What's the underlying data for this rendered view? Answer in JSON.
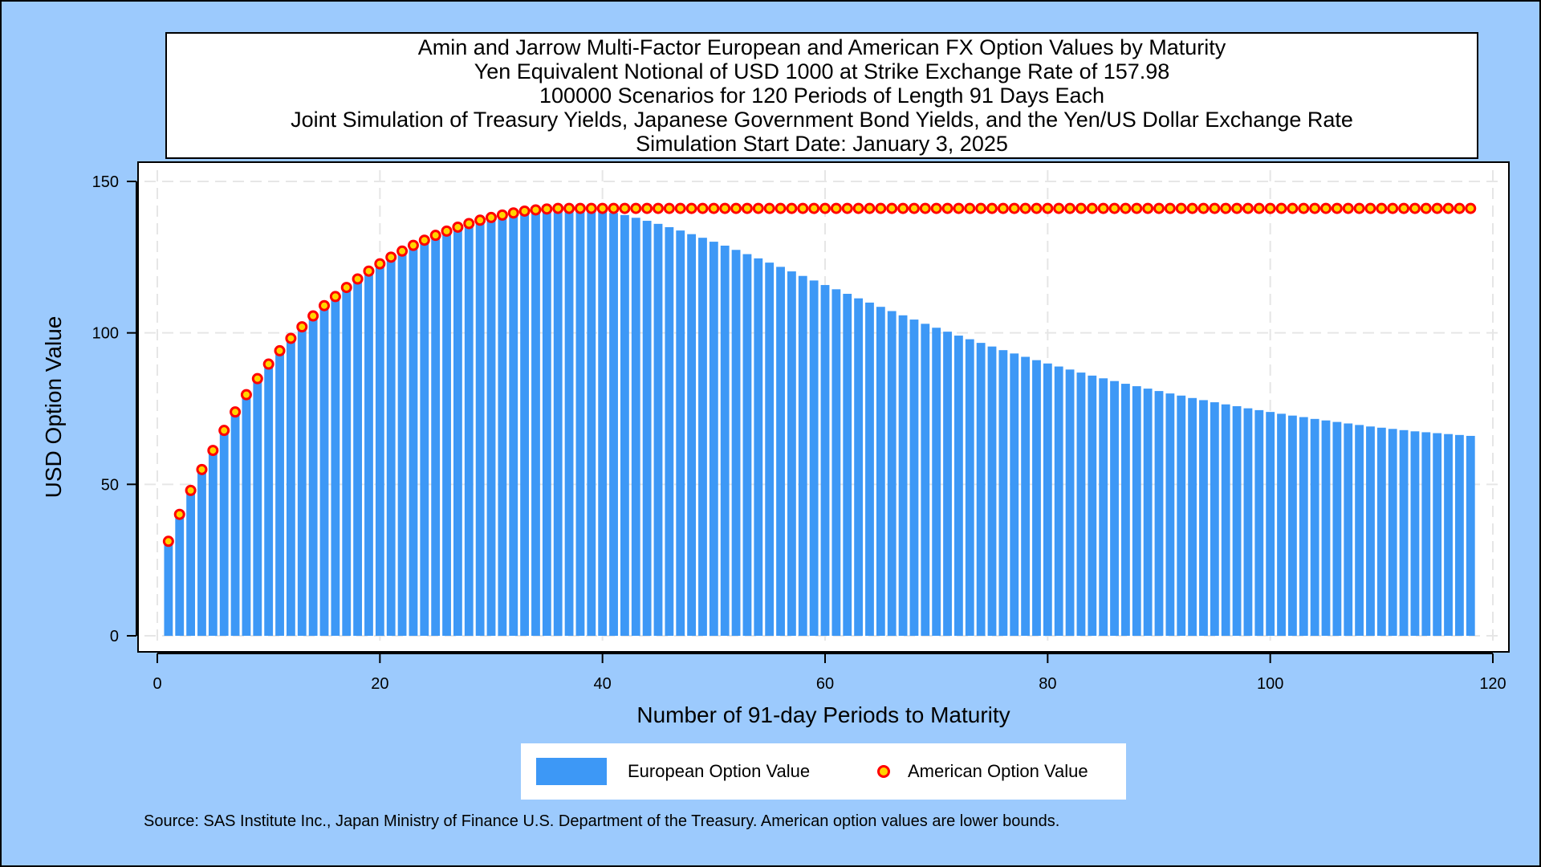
{
  "chart_data": {
    "type": "bar",
    "title": [
      "Amin and Jarrow Multi-Factor European and American FX Option Values by Maturity",
      "Yen Equivalent Notional of USD 1000 at Strike Exchange Rate of 157.98",
      "100000 Scenarios for 120 Periods of Length 91 Days Each",
      "Joint Simulation of Treasury Yields, Japanese Government Bond Yields, and the Yen/US Dollar Exchange Rate",
      "Simulation Start Date: January 3, 2025"
    ],
    "xlabel": "Number of 91-day Periods to Maturity",
    "ylabel": "USD Option Value",
    "xlim": [
      0,
      120
    ],
    "ylim": [
      0,
      150
    ],
    "xticks": [
      "0",
      "20",
      "40",
      "60",
      "80",
      "100",
      "120"
    ],
    "yticks": [
      "0",
      "50",
      "100",
      "150"
    ],
    "grid": true,
    "legend_position": "bottom",
    "x": [
      1,
      2,
      3,
      4,
      5,
      6,
      7,
      8,
      9,
      10,
      11,
      12,
      13,
      14,
      15,
      16,
      17,
      18,
      19,
      20,
      21,
      22,
      23,
      24,
      25,
      26,
      27,
      28,
      29,
      30,
      31,
      32,
      33,
      34,
      35,
      36,
      37,
      38,
      39,
      40,
      41,
      42,
      43,
      44,
      45,
      46,
      47,
      48,
      49,
      50,
      51,
      52,
      53,
      54,
      55,
      56,
      57,
      58,
      59,
      60,
      61,
      62,
      63,
      64,
      65,
      66,
      67,
      68,
      69,
      70,
      71,
      72,
      73,
      74,
      75,
      76,
      77,
      78,
      79,
      80,
      81,
      82,
      83,
      84,
      85,
      86,
      87,
      88,
      89,
      90,
      91,
      92,
      93,
      94,
      95,
      96,
      97,
      98,
      99,
      100,
      101,
      102,
      103,
      104,
      105,
      106,
      107,
      108,
      109,
      110,
      111,
      112,
      113,
      114,
      115,
      116,
      117,
      118
    ],
    "series": [
      {
        "name": "European Option Value",
        "color": "#3d98f6",
        "marker": "bar",
        "values": [
          31.2,
          40.1,
          48,
          54.9,
          61.2,
          67.8,
          73.9,
          79.6,
          84.9,
          89.7,
          94.1,
          98.2,
          102,
          105.6,
          109,
          112,
          115,
          117.8,
          120.4,
          122.8,
          125,
          127,
          128.9,
          130.6,
          132.2,
          133.6,
          134.9,
          136.1,
          137.2,
          138.1,
          138.9,
          139.6,
          140.2,
          140.6,
          140.9,
          141.1,
          141.1,
          141,
          140.7,
          140.2,
          139.6,
          138.9,
          138,
          137,
          136,
          134.9,
          133.8,
          132.6,
          131.4,
          130.1,
          128.8,
          127.4,
          126,
          124.6,
          123.2,
          121.8,
          120.3,
          118.8,
          117.3,
          115.8,
          114.4,
          112.9,
          111.4,
          110,
          108.6,
          107.2,
          105.8,
          104.4,
          103,
          101.7,
          100.4,
          99.1,
          97.9,
          96.7,
          95.5,
          94.3,
          93.2,
          92.1,
          91,
          89.9,
          88.9,
          87.9,
          86.9,
          85.9,
          85,
          84.1,
          83.2,
          82.4,
          81.6,
          80.8,
          80,
          79.3,
          78.5,
          77.8,
          77.1,
          76.4,
          75.8,
          75.1,
          74.5,
          73.9,
          73.3,
          72.7,
          72.2,
          71.6,
          71.1,
          70.6,
          70.1,
          69.6,
          69.1,
          68.7,
          68.3,
          67.9,
          67.5,
          67.2,
          66.9,
          66.6,
          66.3,
          66
        ]
      },
      {
        "name": "American Option Value",
        "color": "#ffd400",
        "edge_color": "#ff0000",
        "marker": "circle",
        "values": [
          31.2,
          40.1,
          48,
          54.9,
          61.2,
          67.8,
          73.9,
          79.6,
          84.9,
          89.7,
          94.1,
          98.2,
          102,
          105.6,
          109,
          112,
          115,
          117.8,
          120.4,
          122.8,
          125,
          127,
          128.9,
          130.6,
          132.2,
          133.6,
          134.9,
          136.1,
          137.2,
          138.1,
          138.9,
          139.6,
          140.2,
          140.6,
          140.9,
          141.1,
          141.1,
          141.1,
          141.1,
          141.1,
          141.1,
          141.1,
          141.1,
          141.1,
          141.1,
          141.1,
          141.1,
          141.1,
          141.1,
          141.1,
          141.1,
          141.1,
          141.1,
          141.1,
          141.1,
          141.1,
          141.1,
          141.1,
          141.1,
          141.1,
          141.1,
          141.1,
          141.1,
          141.1,
          141.1,
          141.1,
          141.1,
          141.1,
          141.1,
          141.1,
          141.1,
          141.1,
          141.1,
          141.1,
          141.1,
          141.1,
          141.1,
          141.1,
          141.1,
          141.1,
          141.1,
          141.1,
          141.1,
          141.1,
          141.1,
          141.1,
          141.1,
          141.1,
          141.1,
          141.1,
          141.1,
          141.1,
          141.1,
          141.1,
          141.1,
          141.1,
          141.1,
          141.1,
          141.1,
          141.1,
          141.1,
          141.1,
          141.1,
          141.1,
          141.1,
          141.1,
          141.1,
          141.1,
          141.1,
          141.1,
          141.1,
          141.1,
          141.1,
          141.1,
          141.1,
          141.1,
          141.1,
          141.1
        ]
      }
    ],
    "footnote": "Source: SAS Institute Inc., Japan Ministry of Finance U.S. Department of the Treasury. American option values are lower bounds."
  },
  "colors": {
    "background": "#9ccafd",
    "plot_background": "#ffffff",
    "grid": "#e6e6e6"
  }
}
